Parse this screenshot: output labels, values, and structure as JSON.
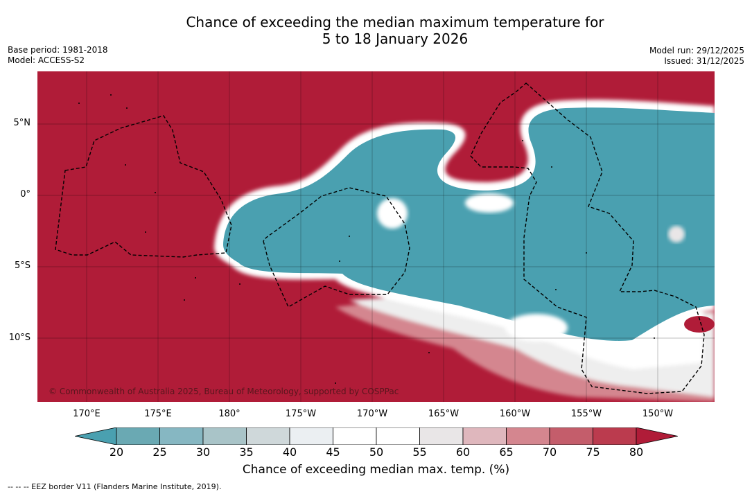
{
  "title": {
    "line1": "Chance of exceeding the median maximum temperature for",
    "line2": "5 to 18 January 2026"
  },
  "meta_left": {
    "base_period": "Base period: 1981-2018",
    "model": "Model: ACCESS-S2"
  },
  "meta_right": {
    "model_run": "Model run: 29/12/2025",
    "issued": "Issued: 31/12/2025"
  },
  "map": {
    "lat_labels": [
      "5°N",
      "0°",
      "5°S",
      "10°S"
    ],
    "lon_labels": [
      "170°E",
      "175°E",
      "180°",
      "175°W",
      "170°W",
      "165°W",
      "160°W",
      "155°W",
      "150°W"
    ],
    "copyright": "© Commonwealth of Australia 2025, Bureau of Meteorology, supported by COSPPac"
  },
  "colorbar": {
    "labels": [
      "20",
      "25",
      "30",
      "35",
      "40",
      "45",
      "50",
      "55",
      "60",
      "65",
      "70",
      "75",
      "80"
    ],
    "colors": [
      "#4aa0b0",
      "#6aa9b3",
      "#86b7c2",
      "#a9c4c8",
      "#cfd8da",
      "#ebeff2",
      "#ffffff",
      "#ffffff",
      "#e9e6e7",
      "#dfb7bd",
      "#d4868f",
      "#c45d6b",
      "#bb3b4e",
      "#b01c38"
    ],
    "title": "Chance of exceeding median max. temp. (%)"
  },
  "footnote": "--  --  -- EEZ border V11 (Flanders Marine Institute, 2019).",
  "colors": {
    "warm": "#b01c38",
    "cool": "#4aa0b0"
  }
}
